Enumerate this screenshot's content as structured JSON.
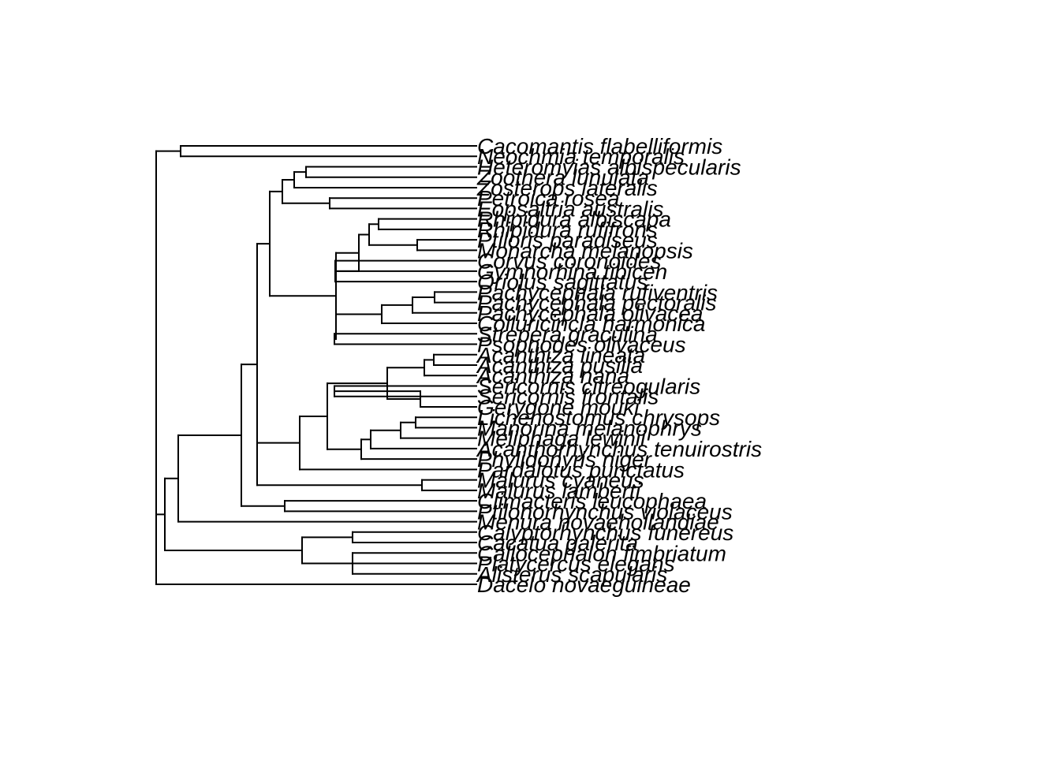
{
  "diagram": {
    "type": "phylogram",
    "orientation": "rightwards",
    "line_color": "#000000",
    "background": "#ffffff"
  },
  "tips": [
    "Cacomantis flabelliformis",
    "Neochmia temporalis",
    "Heteromyias albispecularis",
    "Zoothera lunulata",
    "Zosterops lateralis",
    "Petroica rosea",
    "Eopsaltria australis",
    "Rhipidura albiscapa",
    "Rhipidura rufifrons",
    "Ptiloris paradiseus",
    "Monarcha melanopsis",
    "Corvus coronoides",
    "Gymnorhina tibicen",
    "Oriolus sagittatus",
    "Pachycephala rufiventris",
    "Pachycephala pectoralis",
    "Pachycephala olivacea",
    "Colluricincla harmonica",
    "Strepera graculina",
    "Psophodes olivaceus",
    "Acanthiza lineata",
    "Acanthiza pusilla",
    "Acanthiza nana",
    "Sericornis citreogularis",
    "Sericornis frontalis",
    "Gerygone mouki",
    "Lichenostomus chrysops",
    "Manorina melanophrys",
    "Meliphaga lewinii",
    "Acanthorhynchus tenuirostris",
    "Phylidonyris niger",
    "Pardalotus punctatus",
    "Malurus cyaneus",
    "Malurus lamberti",
    "Climacteris leucophaea",
    "Ptilonorhynchus violaceus",
    "Menura novaehollandiae",
    "Calyptorhynchus funereus",
    "Cacatua galerita",
    "Callocephalon fimbriatum",
    "Platycercus elegans",
    "Alisterus scapularis",
    "Dacelo novaeguineae"
  ],
  "tree": {
    "children": [
      {
        "children": [
          {
            "tip": 0
          },
          {
            "tip": 1
          }
        ]
      },
      {
        "children": [
          {
            "children": [
              {
                "children": [
                  {
                    "children": [
                      {
                        "children": [
                          {
                            "children": [
                              {
                                "children": [
                                  {
                                    "children": [
                                      {
                                        "tip": 2
                                      },
                                      {
                                        "tip": 3
                                      }
                                    ]
                                  },
                                  {
                                    "tip": 4
                                  }
                                ]
                              },
                              {
                                "children": [
                                  {
                                    "tip": 5
                                  },
                                  {
                                    "tip": 6
                                  }
                                ]
                              }
                            ]
                          },
                          {
                            "children": [
                              {
                                "children": [
                                  {
                                    "children": [
                                      {
                                        "children": [
                                          {
                                            "tip": 7
                                          },
                                          {
                                            "tip": 8
                                          }
                                        ]
                                      },
                                      {
                                        "children": [
                                          {
                                            "tip": 9
                                          },
                                          {
                                            "tip": 10
                                          }
                                        ]
                                      }
                                    ]
                                  },
                                  {
                                    "children": [
                                      {
                                        "tip": 11
                                      },
                                      {
                                        "tip": 12
                                      },
                                      {
                                        "tip": 13
                                      }
                                    ]
                                  }
                                ]
                              },
                              {
                                "children": [
                                  {
                                    "children": [
                                      {
                                        "children": [
                                          {
                                            "tip": 14
                                          },
                                          {
                                            "tip": 15
                                          }
                                        ]
                                      },
                                      {
                                        "tip": 16
                                      }
                                    ]
                                  },
                                  {
                                    "tip": 17
                                  }
                                ]
                              },
                              {
                                "children": [
                                  {
                                    "tip": 18
                                  },
                                  {
                                    "tip": 19
                                  }
                                ]
                              }
                            ]
                          }
                        ]
                      },
                      {
                        "children": [
                          {
                            "children": [
                              {
                                "children": [
                                  {
                                    "children": [
                                      {
                                        "children": [
                                          {
                                            "tip": 20
                                          },
                                          {
                                            "tip": 21
                                          }
                                        ]
                                      },
                                      {
                                        "tip": 22
                                      }
                                    ]
                                  },
                                  {
                                    "children": [
                                      {
                                        "children": [
                                          {
                                            "tip": 23
                                          },
                                          {
                                            "tip": 24
                                          }
                                        ]
                                      },
                                      {
                                        "tip": 25
                                      }
                                    ]
                                  }
                                ]
                              },
                              {
                                "children": [
                                  {
                                    "children": [
                                      {
                                        "children": [
                                          {
                                            "children": [
                                              {
                                                "tip": 26
                                              },
                                              {
                                                "tip": 27
                                              }
                                            ]
                                          },
                                          {
                                            "tip": 28
                                          }
                                        ]
                                      },
                                      {
                                        "tip": 29
                                      }
                                    ]
                                  },
                                  {
                                    "tip": 30
                                  }
                                ]
                              }
                            ]
                          },
                          {
                            "tip": 31
                          }
                        ]
                      },
                      {
                        "children": [
                          {
                            "tip": 32
                          },
                          {
                            "tip": 33
                          }
                        ]
                      }
                    ]
                  },
                  {
                    "children": [
                      {
                        "tip": 34
                      },
                      {
                        "tip": 35
                      }
                    ]
                  }
                ]
              },
              {
                "tip": 36
              }
            ]
          },
          {
            "children": [
              {
                "children": [
                  {
                    "tip": 37
                  },
                  {
                    "tip": 38
                  }
                ]
              },
              {
                "children": [
                  {
                    "tip": 39
                  },
                  {
                    "tip": 40
                  },
                  {
                    "tip": 41
                  }
                ]
              }
            ]
          }
        ]
      },
      {
        "tip": 42
      }
    ]
  }
}
